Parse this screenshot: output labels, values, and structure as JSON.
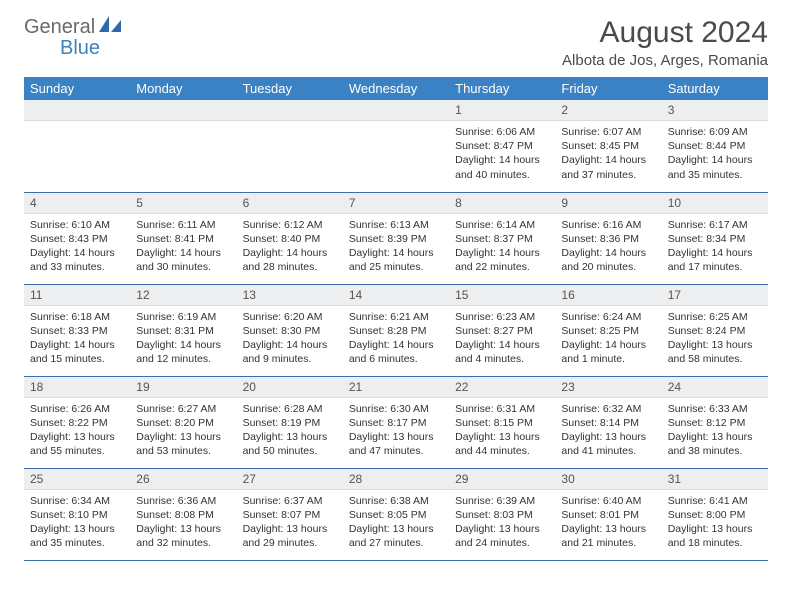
{
  "logo": {
    "general": "General",
    "blue": "Blue"
  },
  "title": {
    "month": "August 2024",
    "location": "Albota de Jos, Arges, Romania"
  },
  "colors": {
    "header_bg": "#3a82c4",
    "header_text": "#ffffff",
    "daynum_bg": "#eceef0",
    "row_border": "#3a6fa8",
    "logo_gray": "#6a6a6a",
    "logo_blue": "#3a82c4"
  },
  "weekdays": [
    "Sunday",
    "Monday",
    "Tuesday",
    "Wednesday",
    "Thursday",
    "Friday",
    "Saturday"
  ],
  "weeks": [
    [
      null,
      null,
      null,
      null,
      {
        "d": "1",
        "sr": "6:06 AM",
        "ss": "8:47 PM",
        "dl": "14 hours and 40 minutes."
      },
      {
        "d": "2",
        "sr": "6:07 AM",
        "ss": "8:45 PM",
        "dl": "14 hours and 37 minutes."
      },
      {
        "d": "3",
        "sr": "6:09 AM",
        "ss": "8:44 PM",
        "dl": "14 hours and 35 minutes."
      }
    ],
    [
      {
        "d": "4",
        "sr": "6:10 AM",
        "ss": "8:43 PM",
        "dl": "14 hours and 33 minutes."
      },
      {
        "d": "5",
        "sr": "6:11 AM",
        "ss": "8:41 PM",
        "dl": "14 hours and 30 minutes."
      },
      {
        "d": "6",
        "sr": "6:12 AM",
        "ss": "8:40 PM",
        "dl": "14 hours and 28 minutes."
      },
      {
        "d": "7",
        "sr": "6:13 AM",
        "ss": "8:39 PM",
        "dl": "14 hours and 25 minutes."
      },
      {
        "d": "8",
        "sr": "6:14 AM",
        "ss": "8:37 PM",
        "dl": "14 hours and 22 minutes."
      },
      {
        "d": "9",
        "sr": "6:16 AM",
        "ss": "8:36 PM",
        "dl": "14 hours and 20 minutes."
      },
      {
        "d": "10",
        "sr": "6:17 AM",
        "ss": "8:34 PM",
        "dl": "14 hours and 17 minutes."
      }
    ],
    [
      {
        "d": "11",
        "sr": "6:18 AM",
        "ss": "8:33 PM",
        "dl": "14 hours and 15 minutes."
      },
      {
        "d": "12",
        "sr": "6:19 AM",
        "ss": "8:31 PM",
        "dl": "14 hours and 12 minutes."
      },
      {
        "d": "13",
        "sr": "6:20 AM",
        "ss": "8:30 PM",
        "dl": "14 hours and 9 minutes."
      },
      {
        "d": "14",
        "sr": "6:21 AM",
        "ss": "8:28 PM",
        "dl": "14 hours and 6 minutes."
      },
      {
        "d": "15",
        "sr": "6:23 AM",
        "ss": "8:27 PM",
        "dl": "14 hours and 4 minutes."
      },
      {
        "d": "16",
        "sr": "6:24 AM",
        "ss": "8:25 PM",
        "dl": "14 hours and 1 minute."
      },
      {
        "d": "17",
        "sr": "6:25 AM",
        "ss": "8:24 PM",
        "dl": "13 hours and 58 minutes."
      }
    ],
    [
      {
        "d": "18",
        "sr": "6:26 AM",
        "ss": "8:22 PM",
        "dl": "13 hours and 55 minutes."
      },
      {
        "d": "19",
        "sr": "6:27 AM",
        "ss": "8:20 PM",
        "dl": "13 hours and 53 minutes."
      },
      {
        "d": "20",
        "sr": "6:28 AM",
        "ss": "8:19 PM",
        "dl": "13 hours and 50 minutes."
      },
      {
        "d": "21",
        "sr": "6:30 AM",
        "ss": "8:17 PM",
        "dl": "13 hours and 47 minutes."
      },
      {
        "d": "22",
        "sr": "6:31 AM",
        "ss": "8:15 PM",
        "dl": "13 hours and 44 minutes."
      },
      {
        "d": "23",
        "sr": "6:32 AM",
        "ss": "8:14 PM",
        "dl": "13 hours and 41 minutes."
      },
      {
        "d": "24",
        "sr": "6:33 AM",
        "ss": "8:12 PM",
        "dl": "13 hours and 38 minutes."
      }
    ],
    [
      {
        "d": "25",
        "sr": "6:34 AM",
        "ss": "8:10 PM",
        "dl": "13 hours and 35 minutes."
      },
      {
        "d": "26",
        "sr": "6:36 AM",
        "ss": "8:08 PM",
        "dl": "13 hours and 32 minutes."
      },
      {
        "d": "27",
        "sr": "6:37 AM",
        "ss": "8:07 PM",
        "dl": "13 hours and 29 minutes."
      },
      {
        "d": "28",
        "sr": "6:38 AM",
        "ss": "8:05 PM",
        "dl": "13 hours and 27 minutes."
      },
      {
        "d": "29",
        "sr": "6:39 AM",
        "ss": "8:03 PM",
        "dl": "13 hours and 24 minutes."
      },
      {
        "d": "30",
        "sr": "6:40 AM",
        "ss": "8:01 PM",
        "dl": "13 hours and 21 minutes."
      },
      {
        "d": "31",
        "sr": "6:41 AM",
        "ss": "8:00 PM",
        "dl": "13 hours and 18 minutes."
      }
    ]
  ],
  "labels": {
    "sunrise": "Sunrise:",
    "sunset": "Sunset:",
    "daylight": "Daylight:"
  }
}
